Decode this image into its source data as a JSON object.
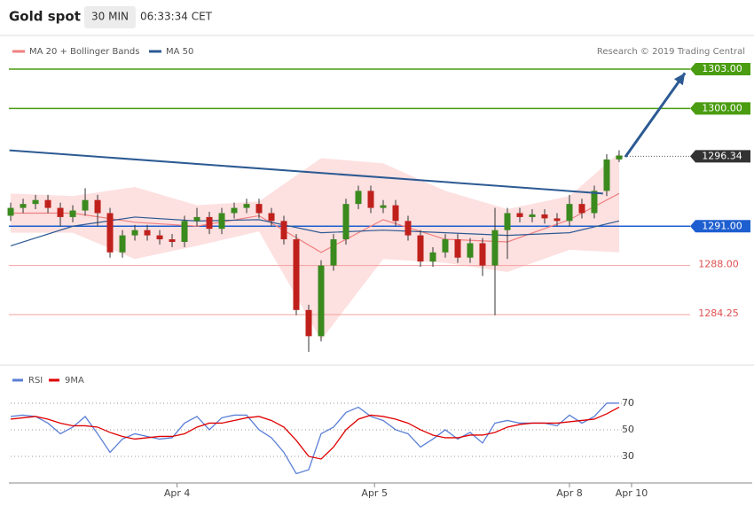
{
  "header": {
    "title": "Gold spot",
    "interval": "30 MIN",
    "time": "06:33:34 CET"
  },
  "chart_data": [
    {
      "type": "candlestick",
      "credit": "Research © 2019 Trading Central",
      "x": [
        0,
        1,
        2,
        3,
        4,
        5,
        6,
        7,
        8,
        9,
        10,
        11,
        12,
        13,
        14,
        15,
        16,
        17,
        18,
        19,
        20,
        21,
        22,
        23,
        24,
        25,
        26,
        27,
        28,
        29,
        30,
        31,
        32,
        33,
        34,
        35,
        36,
        37,
        38,
        39,
        40,
        41,
        42,
        43,
        44,
        45,
        46,
        47,
        48,
        49
      ],
      "open": [
        1291.8,
        1292.4,
        1292.7,
        1293.0,
        1292.4,
        1291.7,
        1292.2,
        1293.0,
        1292.0,
        1289.0,
        1290.3,
        1290.7,
        1290.3,
        1290.0,
        1289.8,
        1291.4,
        1291.7,
        1290.8,
        1292.0,
        1292.4,
        1292.7,
        1292.0,
        1291.4,
        1290.0,
        1284.6,
        1282.6,
        1288.0,
        1290.0,
        1292.7,
        1293.7,
        1292.4,
        1292.6,
        1291.4,
        1290.3,
        1288.3,
        1289.0,
        1290.0,
        1288.6,
        1289.7,
        1288.0,
        1290.7,
        1292.0,
        1291.7,
        1291.9,
        1291.6,
        1291.4,
        1292.7,
        1292.0,
        1293.7,
        1296.1
      ],
      "high": [
        1292.8,
        1293.1,
        1293.4,
        1293.4,
        1292.8,
        1292.6,
        1293.9,
        1293.4,
        1292.4,
        1290.7,
        1291.1,
        1291.1,
        1290.7,
        1290.4,
        1291.8,
        1292.4,
        1292.1,
        1292.4,
        1292.8,
        1293.1,
        1293.1,
        1292.4,
        1291.8,
        1290.4,
        1285.0,
        1288.4,
        1290.4,
        1293.1,
        1294.1,
        1294.1,
        1293.0,
        1293.0,
        1291.8,
        1290.7,
        1289.4,
        1290.4,
        1290.4,
        1290.1,
        1290.1,
        1292.4,
        1292.4,
        1292.4,
        1292.3,
        1292.3,
        1292.0,
        1293.4,
        1293.1,
        1294.1,
        1296.5,
        1296.8
      ],
      "low": [
        1291.4,
        1292.0,
        1292.3,
        1292.0,
        1291.0,
        1291.3,
        1291.8,
        1291.0,
        1288.6,
        1288.6,
        1289.9,
        1289.9,
        1289.6,
        1289.4,
        1289.4,
        1291.0,
        1290.4,
        1290.4,
        1291.6,
        1292.0,
        1291.6,
        1291.0,
        1289.6,
        1284.2,
        1281.4,
        1282.2,
        1287.6,
        1289.6,
        1292.3,
        1292.0,
        1292.0,
        1291.0,
        1289.9,
        1287.9,
        1287.9,
        1288.6,
        1288.2,
        1288.2,
        1287.2,
        1284.2,
        1288.5,
        1291.3,
        1291.3,
        1291.2,
        1291.0,
        1291.0,
        1291.6,
        1291.6,
        1293.3,
        1295.9
      ],
      "close": [
        1292.4,
        1292.7,
        1293.0,
        1292.4,
        1291.7,
        1292.2,
        1293.0,
        1292.0,
        1289.0,
        1290.3,
        1290.7,
        1290.3,
        1290.0,
        1289.8,
        1291.4,
        1291.7,
        1290.8,
        1292.0,
        1292.4,
        1292.7,
        1292.0,
        1291.4,
        1290.0,
        1284.6,
        1282.6,
        1288.0,
        1290.0,
        1292.7,
        1293.7,
        1292.4,
        1292.6,
        1291.4,
        1290.3,
        1288.3,
        1289.0,
        1290.0,
        1288.6,
        1289.7,
        1288.0,
        1290.7,
        1292.0,
        1291.7,
        1291.9,
        1291.6,
        1291.4,
        1292.7,
        1292.0,
        1293.7,
        1296.1,
        1296.4
      ],
      "up_color": "#3a8a1e",
      "down_color": "#c0201c",
      "overlay_x": [
        0,
        5,
        10,
        15,
        20,
        25,
        30,
        35,
        40,
        45,
        49
      ],
      "overlays": [
        {
          "name": "MA 20 + Bollinger Bands",
          "color": "#f08080",
          "band_color": "#fde0e0",
          "values": [
            1292.0,
            1292.0,
            1291.3,
            1291.0,
            1291.8,
            1289.0,
            1291.5,
            1290.0,
            1289.8,
            1291.5,
            1293.5
          ],
          "upper": [
            1293.5,
            1293.3,
            1294.0,
            1292.6,
            1292.9,
            1296.2,
            1295.8,
            1293.7,
            1292.3,
            1293.3,
            1296.6
          ],
          "lower": [
            1290.5,
            1290.5,
            1288.5,
            1289.5,
            1290.6,
            1282.3,
            1288.5,
            1288.2,
            1287.5,
            1289.2,
            1289.0
          ]
        },
        {
          "name": "MA 50",
          "color": "#2c5a93",
          "values": [
            1289.5,
            1291.0,
            1291.7,
            1291.4,
            1291.5,
            1290.5,
            1290.7,
            1290.5,
            1290.3,
            1290.5,
            1291.4
          ]
        }
      ],
      "trendlines": [
        {
          "x": [
            -0.1,
            47.7
          ],
          "values": [
            1296.8,
            1293.5
          ],
          "color": "#2c5a93",
          "arrow": false
        },
        {
          "x": [
            49.5,
            54.3
          ],
          "values": [
            1296.3,
            1302.7
          ],
          "color": "#2c5a93",
          "arrow": true
        }
      ],
      "levels": [
        {
          "value": 1303,
          "label": "1303.00",
          "color": "#4a9c10",
          "style": "box"
        },
        {
          "value": 1300,
          "label": "1300.00",
          "color": "#4a9c10",
          "style": "box"
        },
        {
          "value": 1296.34,
          "label": "1296.34",
          "color": "#333333",
          "style": "dotted-box"
        },
        {
          "value": 1291,
          "label": "1291.00",
          "color": "#1e5fd0",
          "style": "box"
        },
        {
          "value": 1288,
          "label": "1288.00",
          "color": "#e05050",
          "style": "text"
        },
        {
          "value": 1284.25,
          "label": "1284.25",
          "color": "#e05050",
          "style": "text"
        }
      ],
      "xlim": [
        -0.86,
        59.86
      ],
      "ylim": [
        1280.66,
        1303.88
      ]
    },
    {
      "type": "line",
      "x": [
        0,
        1,
        2,
        3,
        4,
        5,
        6,
        7,
        8,
        9,
        10,
        11,
        12,
        13,
        14,
        15,
        16,
        17,
        18,
        19,
        20,
        21,
        22,
        23,
        24,
        25,
        26,
        27,
        28,
        29,
        30,
        31,
        32,
        33,
        34,
        35,
        36,
        37,
        38,
        39,
        40,
        41,
        42,
        43,
        44,
        45,
        46,
        47,
        48,
        49
      ],
      "series": [
        {
          "name": "RSI",
          "color": "#5b7fd6",
          "values": [
            60,
            61,
            60,
            55,
            47,
            52,
            60,
            47,
            33,
            43,
            47,
            45,
            43,
            44,
            55,
            60,
            50,
            59,
            61,
            61,
            50,
            44,
            33,
            17,
            20,
            47,
            52,
            63,
            67,
            60,
            57,
            50,
            47,
            37,
            43,
            50,
            43,
            48,
            40,
            55,
            57,
            55,
            55,
            55,
            53,
            61,
            55,
            60,
            70,
            70
          ]
        },
        {
          "name": "9MA",
          "color": "#e00000",
          "values": [
            58,
            59,
            60,
            58,
            55,
            53,
            53,
            52,
            48,
            45,
            43,
            44,
            45,
            45,
            47,
            52,
            55,
            55,
            57,
            59,
            60,
            57,
            52,
            42,
            30,
            28,
            37,
            50,
            58,
            61,
            60,
            58,
            55,
            50,
            46,
            44,
            44,
            46,
            46,
            48,
            52,
            54,
            55,
            55,
            55,
            56,
            57,
            58,
            62,
            67
          ]
        }
      ],
      "xlim": [
        -0.86,
        59.86
      ],
      "ylim": [
        13.3,
        93.3
      ],
      "yticks": [
        30,
        50,
        70
      ],
      "xticks": [
        {
          "value": 13.4,
          "label": "Apr 4"
        },
        {
          "value": 29.3,
          "label": "Apr 5"
        },
        {
          "value": 45,
          "label": "Apr 8"
        },
        {
          "value": 50,
          "label": "Apr 10"
        }
      ]
    }
  ]
}
